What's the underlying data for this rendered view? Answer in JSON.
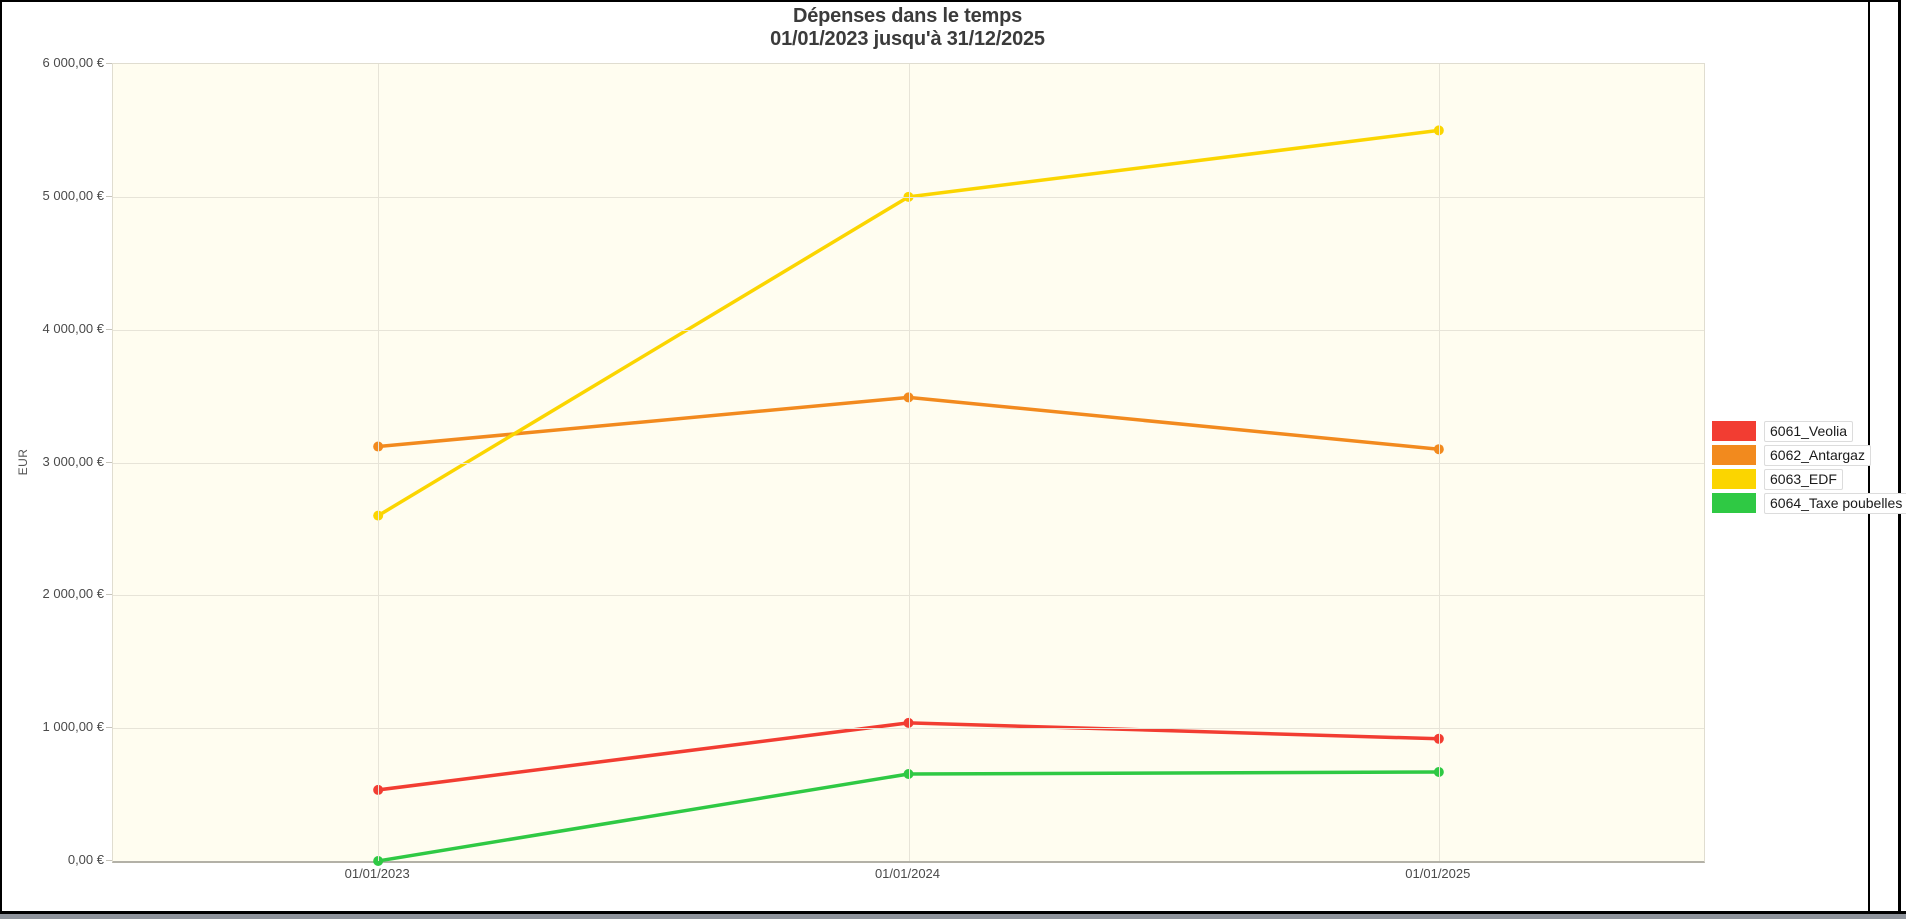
{
  "window": {
    "frame_color": "#000000",
    "bottom_scrollbar_color": "#8e939b"
  },
  "chart": {
    "plot_bg": "#fffdf0",
    "grid_color": "#e7e4d8",
    "axis_line_color": "#b3b1a7",
    "text_color": "#3b3b3b"
  },
  "chart_data": {
    "type": "line",
    "title": "Dépenses dans le temps",
    "subtitle": "01/01/2023 jusqu'à 31/12/2025",
    "xlabel": "",
    "ylabel": "EUR",
    "x": [
      "01/01/2023",
      "01/01/2024",
      "01/01/2025"
    ],
    "ylim": [
      0,
      6000
    ],
    "y_tick_values": [
      0,
      1000,
      2000,
      3000,
      4000,
      5000,
      6000
    ],
    "y_tick_labels": [
      "0,00 €",
      "1 000,00 €",
      "2 000,00 €",
      "3 000,00 €",
      "4 000,00 €",
      "5 000,00 €",
      "6 000,00 €"
    ],
    "grid": true,
    "legend_position": "right",
    "series": [
      {
        "name": "6061_Veolia",
        "color": "#f23d32",
        "values": [
          535,
          1040,
          920
        ]
      },
      {
        "name": "6062_Antargaz",
        "color": "#f28a1e",
        "values": [
          3120,
          3490,
          3100
        ]
      },
      {
        "name": "6063_EDF",
        "color": "#fbd500",
        "values": [
          2600,
          5000,
          5500
        ]
      },
      {
        "name": "6064_Taxe poubelles",
        "color": "#2fc944",
        "values": [
          0,
          655,
          670
        ]
      }
    ]
  }
}
